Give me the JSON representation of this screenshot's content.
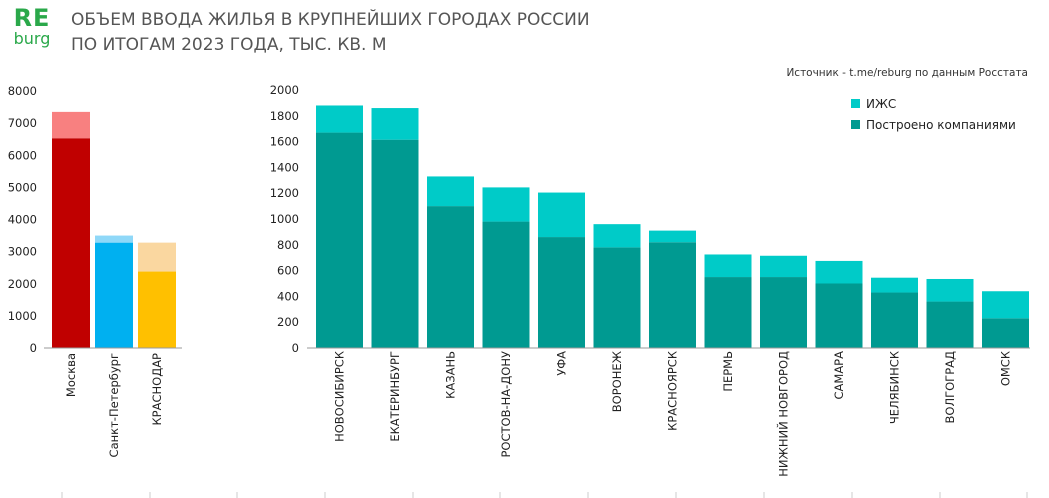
{
  "logo": {
    "text_top": "RE",
    "text_bottom": "burg"
  },
  "title_line1": "ОБЪЕМ ВВОДА ЖИЛЬЯ В КРУПНЕЙШИХ ГОРОДАХ РОССИИ",
  "title_line2": "ПО ИТОГАМ 2023 ГОДА, ТЫС. КВ. М",
  "source": "Источник - t.me/reburg по данным Росстата",
  "colors": {
    "logo": "#2aa84a",
    "izhs": "#00cbc8",
    "companies": "#009a91"
  },
  "chart_data": [
    {
      "type": "bar",
      "stacked": true,
      "ylim": [
        0,
        8000
      ],
      "yticks": [
        0,
        1000,
        2000,
        3000,
        4000,
        5000,
        6000,
        7000,
        8000
      ],
      "grid": false,
      "categories": [
        "Москва",
        "Санкт-Петербург",
        "КРАСНОДАР"
      ],
      "base_values": [
        6530,
        3280,
        2380
      ],
      "top_values": [
        820,
        220,
        900
      ],
      "base_colors": [
        "#c00000",
        "#00b0f0",
        "#ffc000"
      ],
      "top_colors": [
        "#f88080",
        "#8fd8f8",
        "#fad7a0"
      ]
    },
    {
      "type": "bar",
      "stacked": true,
      "ylim": [
        0,
        2000
      ],
      "yticks": [
        0,
        200,
        400,
        600,
        800,
        1000,
        1200,
        1400,
        1600,
        1800,
        2000
      ],
      "grid": false,
      "legend_position": "top-right",
      "categories": [
        "НОВОСИБИРСК",
        "ЕКАТЕРИНБУРГ",
        "КАЗАНЬ",
        "РОСТОВ-НА-ДОНУ",
        "УФА",
        "ВОРОНЕЖ",
        "КРАСНОЯРСК",
        "ПЕРМЬ",
        "НИЖНИЙ НОВГОРОД",
        "САМАРА",
        "ЧЕЛЯБИНСК",
        "ВОЛГОГРАД",
        "ОМСК"
      ],
      "series": [
        {
          "name": "Построено компаниями",
          "values": [
            1670,
            1615,
            1100,
            980,
            860,
            780,
            820,
            550,
            550,
            500,
            430,
            360,
            230
          ]
        },
        {
          "name": "ИЖС",
          "values": [
            210,
            245,
            230,
            265,
            345,
            180,
            90,
            175,
            165,
            175,
            115,
            175,
            210
          ]
        }
      ]
    }
  ]
}
